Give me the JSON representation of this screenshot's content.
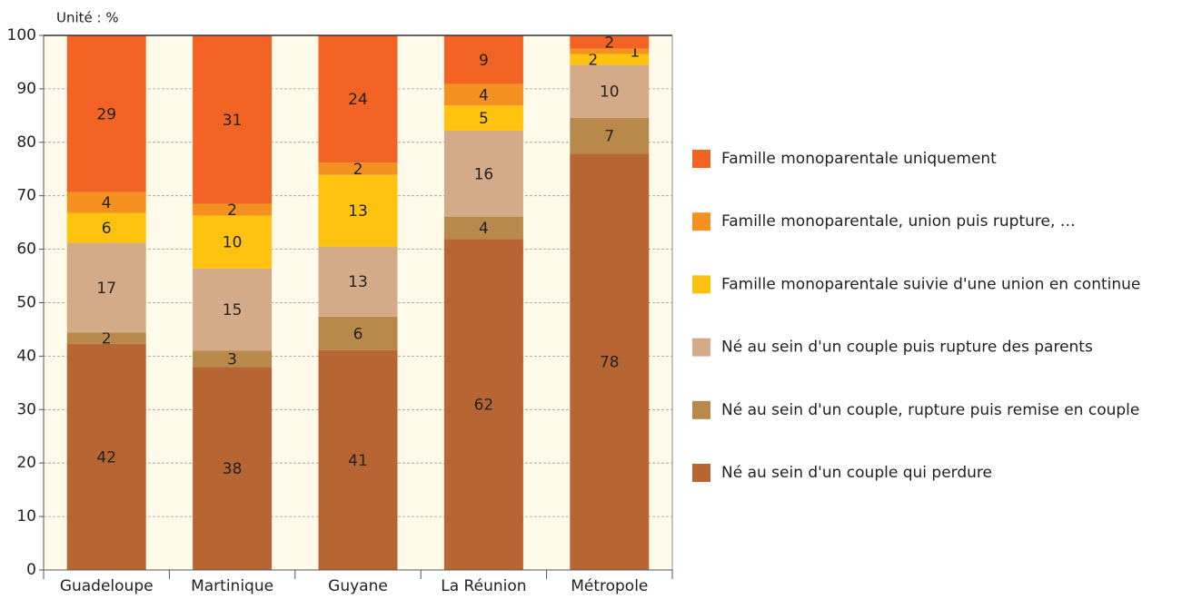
{
  "chart_data": {
    "type": "stacked_bar",
    "unit_label": "Unité : %",
    "categories": [
      "Guadeloupe",
      "Martinique",
      "Guyane",
      "La Réunion",
      "Métropole"
    ],
    "series": [
      {
        "name": "Né au sein d'un couple qui perdure",
        "color": "#b76532",
        "values": [
          42.3,
          38.0,
          41.1,
          61.9,
          77.9
        ],
        "value_labels": [
          "42",
          "38",
          "41",
          "62",
          "78"
        ]
      },
      {
        "name": "Né au sein d'un couple, rupture puis remise en couple",
        "color": "#b8894a",
        "values": [
          2.1,
          3.0,
          6.3,
          4.2,
          6.7
        ],
        "value_labels": [
          "2",
          "3",
          "6",
          "4",
          "7"
        ]
      },
      {
        "name": "Né au sein d'un couple puis rupture des parents",
        "color": "#d4ab88",
        "values": [
          16.8,
          15.4,
          13.1,
          16.1,
          9.9
        ],
        "value_labels": [
          "17",
          "15",
          "13",
          "16",
          "10"
        ]
      },
      {
        "name": "Famille monoparentale suivie d'une union en continue",
        "color": "#ffc20f",
        "values": [
          5.6,
          9.9,
          13.4,
          4.7,
          2.0
        ],
        "value_labels": [
          "6",
          "10",
          "13",
          "5",
          "2"
        ]
      },
      {
        "name": "Famille monoparentale, union puis rupture, …",
        "color": "#f59120",
        "values": [
          3.9,
          2.2,
          2.3,
          4.0,
          1.0
        ],
        "value_labels": [
          "4",
          "2",
          "2",
          "4",
          "1"
        ]
      },
      {
        "name": "Famille monoparentale uniquement",
        "color": "#f26324",
        "values": [
          29.3,
          31.4,
          23.8,
          9.1,
          2.4
        ],
        "value_labels": [
          "29",
          "31",
          "24",
          "9",
          "2"
        ]
      }
    ],
    "legend_order": "reversed",
    "ylim": [
      0,
      100
    ],
    "yticks": [
      0,
      10,
      20,
      30,
      40,
      50,
      60,
      70,
      80,
      90,
      100
    ],
    "grid": true
  }
}
